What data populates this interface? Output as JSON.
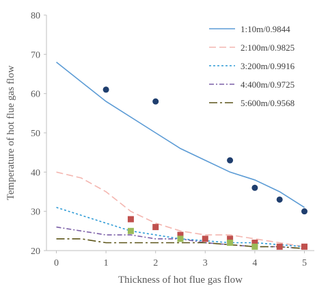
{
  "chart_data": {
    "type": "line",
    "xlabel": "Thickness of hot flue gas flow",
    "ylabel": "Temperature of hot flue gas flow",
    "xlim": [
      -0.2,
      5.2
    ],
    "ylim": [
      20,
      80
    ],
    "x_ticks": [
      "0",
      "1",
      "2",
      "3",
      "4",
      "5"
    ],
    "y_ticks": [
      "20",
      "30",
      "40",
      "50",
      "60",
      "70",
      "80"
    ],
    "grid": false,
    "legend_position": "top-right",
    "series": [
      {
        "name": "1:10m/0.9844",
        "color": "#5B9BD5",
        "dash": "solid",
        "x": [
          0,
          1,
          2,
          2.5,
          3,
          3.5,
          4,
          4.5,
          5
        ],
        "y": [
          68,
          58,
          50,
          46,
          43,
          40,
          38,
          35,
          31
        ]
      },
      {
        "name": "2:100m/0.9825",
        "color": "#F4B6B0",
        "dash": "long-dash",
        "x": [
          0,
          0.5,
          1,
          1.5,
          2,
          2.5,
          3,
          3.5,
          4,
          4.5,
          5
        ],
        "y": [
          40,
          38.5,
          35,
          30,
          27,
          25,
          24,
          24,
          23,
          22,
          21
        ]
      },
      {
        "name": "3:200m/0.9916",
        "color": "#2E9BD6",
        "dash": "short-dash",
        "x": [
          0,
          0.5,
          1,
          1.5,
          2,
          2.5,
          3,
          3.5,
          4,
          4.5,
          5
        ],
        "y": [
          31,
          29,
          27,
          25,
          24,
          23,
          22.5,
          22,
          22,
          21.5,
          21
        ]
      },
      {
        "name": "4:400m/0.9725",
        "color": "#7B5EA7",
        "dash": "dash-dot",
        "x": [
          0,
          0.5,
          1,
          1.5,
          2,
          2.5,
          3,
          3.5,
          4,
          4.5,
          5
        ],
        "y": [
          26,
          25,
          24,
          24,
          23,
          23,
          22,
          21.5,
          21,
          21,
          20.5
        ]
      },
      {
        "name": "5:600m/0.9568",
        "color": "#5C5418",
        "dash": "long-dash-dot",
        "x": [
          0,
          0.5,
          1,
          1.5,
          2,
          2.5,
          3,
          3.5,
          4,
          4.5,
          5
        ],
        "y": [
          23,
          23,
          22,
          22,
          22,
          22,
          22,
          21.5,
          21,
          21,
          20.5
        ]
      }
    ],
    "measured_points": [
      {
        "color": "#1F3E6E",
        "marker": "circle",
        "x": [
          1,
          2,
          3.5,
          4,
          4.5,
          5
        ],
        "y": [
          61,
          58,
          43,
          36,
          33,
          30
        ]
      },
      {
        "color": "#C0504D",
        "marker": "square",
        "x": [
          1.5,
          2,
          2.5,
          3,
          3.5,
          4,
          4.5,
          5
        ],
        "y": [
          28,
          26,
          24,
          23,
          23,
          22,
          21,
          21
        ]
      },
      {
        "color": "#9BBB59",
        "marker": "square",
        "x": [
          1.5,
          2.5,
          3.5,
          4
        ],
        "y": [
          25,
          23,
          22,
          21
        ]
      }
    ]
  }
}
